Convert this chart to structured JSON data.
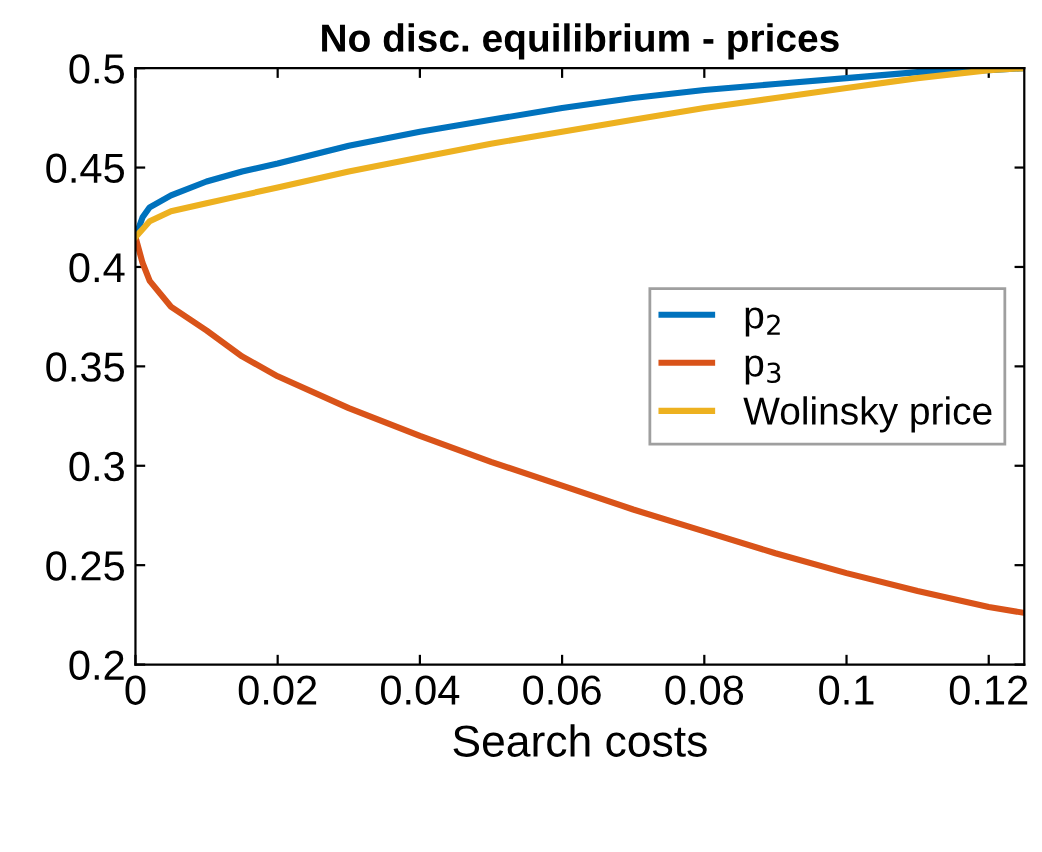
{
  "chart_data": {
    "type": "line",
    "title": "No disc. equilibrium - prices",
    "xlabel": "Search costs",
    "xlim": [
      0,
      0.125
    ],
    "xticks": [
      0,
      0.02,
      0.04,
      0.06,
      0.08,
      0.1,
      0.12
    ],
    "ylim": [
      0.2,
      0.5
    ],
    "yticks": [
      0.2,
      0.25,
      0.3,
      0.35,
      0.4,
      0.45,
      0.5
    ],
    "grid": false,
    "legend": "right",
    "line_style": "solid",
    "x": [
      0,
      0.001,
      0.002,
      0.005,
      0.01,
      0.015,
      0.02,
      0.03,
      0.04,
      0.05,
      0.06,
      0.07,
      0.08,
      0.09,
      0.1,
      0.11,
      0.12,
      0.125
    ],
    "series": [
      {
        "name": "p$_{2}$",
        "color": "#0072bd",
        "values": [
          0.415,
          0.425,
          0.43,
          0.436,
          0.443,
          0.448,
          0.452,
          0.461,
          0.468,
          0.474,
          0.48,
          0.485,
          0.489,
          0.492,
          0.495,
          0.498,
          0.499,
          0.5
        ]
      },
      {
        "name": "p$_{3}$",
        "color": "#d95319",
        "values": [
          0.415,
          0.402,
          0.393,
          0.38,
          0.368,
          0.355,
          0.345,
          0.329,
          0.315,
          0.302,
          0.29,
          0.278,
          0.267,
          0.256,
          0.246,
          0.237,
          0.229,
          0.226
        ]
      },
      {
        "name": "Wolinsky price",
        "color": "#edb120",
        "values": [
          0.415,
          0.419,
          0.423,
          0.428,
          0.432,
          0.436,
          0.44,
          0.448,
          0.455,
          0.462,
          0.468,
          0.474,
          0.48,
          0.485,
          0.49,
          0.495,
          0.499,
          0.5
        ]
      }
    ]
  }
}
